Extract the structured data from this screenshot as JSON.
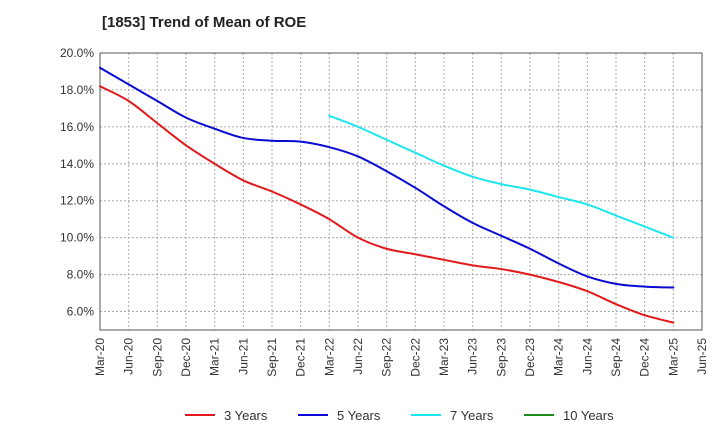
{
  "chart_data": {
    "type": "line",
    "title": "[1853]  Trend of Mean of ROE",
    "xlabel": "",
    "ylabel": "",
    "ylim": [
      5.0,
      20.0
    ],
    "y_ticks": [
      6.0,
      8.0,
      10.0,
      12.0,
      14.0,
      16.0,
      18.0,
      20.0
    ],
    "y_tick_labels": [
      "6.0%",
      "8.0%",
      "10.0%",
      "12.0%",
      "14.0%",
      "16.0%",
      "18.0%",
      "20.0%"
    ],
    "categories": [
      "Mar-20",
      "Jun-20",
      "Sep-20",
      "Dec-20",
      "Mar-21",
      "Jun-21",
      "Sep-21",
      "Dec-21",
      "Mar-22",
      "Jun-22",
      "Sep-22",
      "Dec-22",
      "Mar-23",
      "Jun-23",
      "Sep-23",
      "Dec-23",
      "Mar-24",
      "Jun-24",
      "Sep-24",
      "Dec-24",
      "Mar-25",
      "Jun-25"
    ],
    "grid": true,
    "legend_position": "bottom",
    "series": [
      {
        "name": "3 Years",
        "color": "#e31a1c",
        "values": [
          18.2,
          17.4,
          16.2,
          15.0,
          14.0,
          13.1,
          12.5,
          11.8,
          11.0,
          10.0,
          9.4,
          9.1,
          8.8,
          8.5,
          8.3,
          8.0,
          7.6,
          7.1,
          6.4,
          5.8,
          5.4,
          null
        ]
      },
      {
        "name": "5 Years",
        "color": "#0a0ad2",
        "values": [
          19.2,
          18.3,
          17.4,
          16.5,
          15.9,
          15.4,
          15.25,
          15.2,
          14.9,
          14.4,
          13.6,
          12.7,
          11.7,
          10.8,
          10.1,
          9.4,
          8.6,
          7.9,
          7.5,
          7.35,
          7.3,
          null
        ]
      },
      {
        "name": "7 Years",
        "color": "#1ee6ee",
        "values": [
          null,
          null,
          null,
          null,
          null,
          null,
          null,
          null,
          16.6,
          16.0,
          15.3,
          14.6,
          13.9,
          13.3,
          12.9,
          12.6,
          12.2,
          11.8,
          11.2,
          10.6,
          10.0,
          null
        ]
      },
      {
        "name": "10 Years",
        "color": "#1a8a1a",
        "values": [
          null,
          null,
          null,
          null,
          null,
          null,
          null,
          null,
          null,
          null,
          null,
          null,
          null,
          null,
          null,
          null,
          null,
          null,
          null,
          null,
          null,
          null
        ]
      }
    ]
  }
}
